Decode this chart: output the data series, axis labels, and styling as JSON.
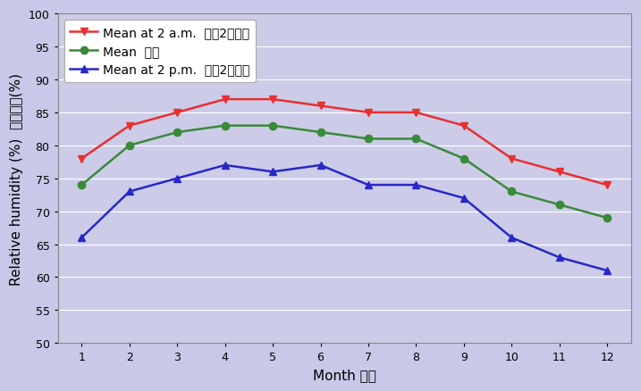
{
  "months": [
    1,
    2,
    3,
    4,
    5,
    6,
    7,
    8,
    9,
    10,
    11,
    12
  ],
  "mean_2am": [
    78,
    83,
    85,
    87,
    87,
    86,
    85,
    85,
    83,
    78,
    76,
    74
  ],
  "mean": [
    74,
    80,
    82,
    83,
    83,
    82,
    81,
    81,
    78,
    73,
    71,
    69
  ],
  "mean_2pm": [
    66,
    73,
    75,
    77,
    76,
    77,
    74,
    74,
    72,
    66,
    63,
    61
  ],
  "color_2am": "#e83030",
  "color_mean": "#3a8a3a",
  "color_2pm": "#2828c8",
  "bg_color": "#c8c8e8",
  "plot_bg_color": "#cccce8",
  "legend_bg": "#ffffff",
  "xlabel": "Month 月份",
  "ylabel_en": "Relative humidity (%)",
  "ylabel_zh": "相對濕度(%)",
  "ylim": [
    50,
    100
  ],
  "yticks": [
    50,
    55,
    60,
    65,
    70,
    75,
    80,
    85,
    90,
    95,
    100
  ],
  "xticks": [
    1,
    2,
    3,
    4,
    5,
    6,
    7,
    8,
    9,
    10,
    11,
    12
  ],
  "label_2am": "Mean at 2 a.m.  上全2時平均",
  "label_mean": "Mean  平均",
  "label_2pm": "Mean at 2 p.m.  下全2時平均",
  "axis_fontsize": 11,
  "legend_fontsize": 10,
  "tick_fontsize": 9
}
